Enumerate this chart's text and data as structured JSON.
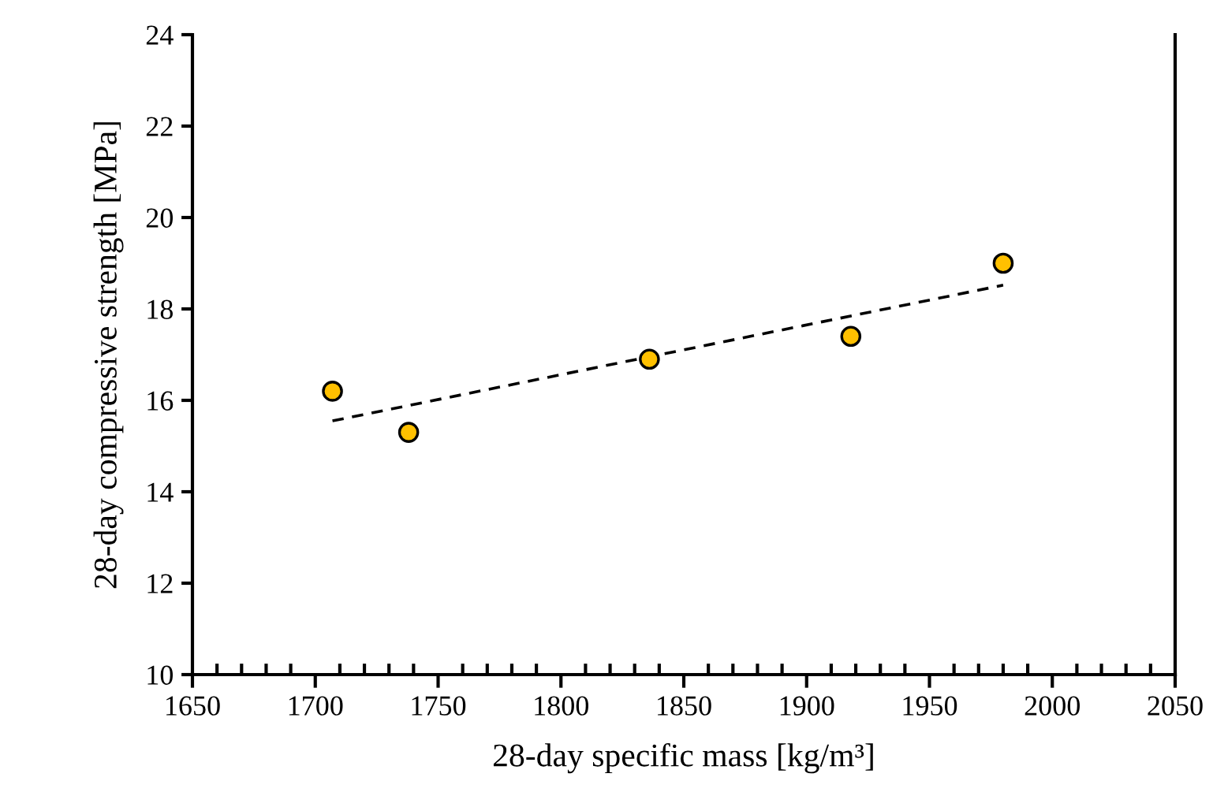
{
  "chart_data": {
    "type": "scatter",
    "xlabel": "28-day specific mass [kg/m³]",
    "ylabel": "28-day compressive strength [MPa]",
    "xlim": [
      1650,
      2050
    ],
    "ylim": [
      10,
      24
    ],
    "xticks": [
      1650,
      {
        "value": 1660,
        "label": null
      },
      {
        "value": 1670,
        "label": null
      },
      {
        "value": 1680,
        "label": null
      },
      {
        "value": 1690,
        "label": null
      },
      1700,
      {
        "value": 1710,
        "label": null
      },
      {
        "value": 1720,
        "label": null
      },
      {
        "value": 1730,
        "label": null
      },
      {
        "value": 1740,
        "label": null
      },
      1750,
      {
        "value": 1760,
        "label": null
      },
      {
        "value": 1770,
        "label": null
      },
      {
        "value": 1780,
        "label": null
      },
      {
        "value": 1790,
        "label": null
      },
      1800,
      {
        "value": 1810,
        "label": null
      },
      {
        "value": 1820,
        "label": null
      },
      {
        "value": 1830,
        "label": null
      },
      {
        "value": 1840,
        "label": null
      },
      1850,
      {
        "value": 1860,
        "label": null
      },
      {
        "value": 1870,
        "label": null
      },
      {
        "value": 1880,
        "label": null
      },
      {
        "value": 1890,
        "label": null
      },
      1900,
      {
        "value": 1910,
        "label": null
      },
      {
        "value": 1920,
        "label": null
      },
      {
        "value": 1930,
        "label": null
      },
      {
        "value": 1940,
        "label": null
      },
      1950,
      {
        "value": 1960,
        "label": null
      },
      {
        "value": 1970,
        "label": null
      },
      {
        "value": 1980,
        "label": null
      },
      {
        "value": 1990,
        "label": null
      },
      2000,
      {
        "value": 2010,
        "label": null
      },
      {
        "value": 2020,
        "label": null
      },
      {
        "value": 2030,
        "label": null
      },
      {
        "value": 2040,
        "label": null
      },
      2050
    ],
    "yticks": [
      10,
      12,
      14,
      16,
      18,
      20,
      22,
      24
    ],
    "grid": false,
    "legend": false,
    "series": [
      {
        "color": "#ffc000",
        "marker": "circle",
        "x": [
          1707,
          1738,
          1836,
          1918,
          1980
        ],
        "values": [
          16.2,
          15.3,
          16.9,
          17.4,
          19.0
        ]
      },
      {
        "type": "line",
        "color": "#000000",
        "marker": "none",
        "line_style": "dashed",
        "x": [
          1707,
          1980
        ],
        "values": [
          15.55,
          18.52
        ]
      }
    ]
  }
}
